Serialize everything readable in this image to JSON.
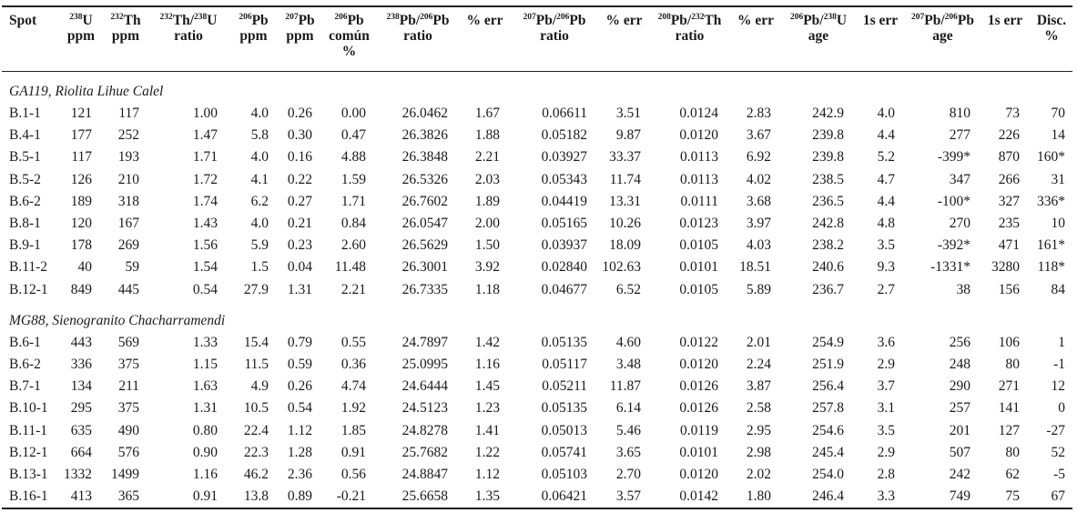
{
  "headers": [
    {
      "l1": "Spot",
      "l2": "",
      "l3": ""
    },
    {
      "iso": "238",
      "l1": "U",
      "l2": "ppm"
    },
    {
      "iso": "232",
      "l1": "Th",
      "l2": "ppm"
    },
    {
      "iso": "232",
      "l1": "Th/",
      "iso2": "238",
      "l1b": "U",
      "l2": "ratio"
    },
    {
      "iso": "206",
      "l1": "Pb",
      "l2": "ppm"
    },
    {
      "iso": "207",
      "l1": "Pb",
      "l2": "ppm"
    },
    {
      "iso": "206",
      "l1": "Pb",
      "l2": "común",
      "l3": "%"
    },
    {
      "iso": "238",
      "l1": "Pb/",
      "iso2": "206",
      "l1b": "Pb",
      "l2": "ratio"
    },
    {
      "l1": "% err"
    },
    {
      "iso": "207",
      "l1": "Pb/",
      "iso2": "206",
      "l1b": "Pb",
      "l2": "ratio"
    },
    {
      "l1": "% err"
    },
    {
      "iso": "208",
      "l1": "Pb/",
      "iso2": "232",
      "l1b": "Th",
      "l2": "ratio"
    },
    {
      "l1": "% err"
    },
    {
      "iso": "206",
      "l1": "Pb/",
      "iso2": "238",
      "l1b": "U",
      "l2": "age"
    },
    {
      "l1": "1s err"
    },
    {
      "iso": "207",
      "l1": "Pb/",
      "iso2": "206",
      "l1b": "Pb",
      "l2": "age"
    },
    {
      "l1": "1s err"
    },
    {
      "l1": "Disc.",
      "l2": "%"
    }
  ],
  "sections": [
    {
      "title": "GA119, Riolita Lihue Calel",
      "rows": [
        [
          "B.1-1",
          "121",
          "117",
          "1.00",
          "4.0",
          "0.26",
          "0.00",
          "26.0462",
          "1.67",
          "0.06611",
          "3.51",
          "0.0124",
          "2.83",
          "242.9",
          "4.0",
          "810",
          "73",
          "70"
        ],
        [
          "B.4-1",
          "177",
          "252",
          "1.47",
          "5.8",
          "0.30",
          "0.47",
          "26.3826",
          "1.88",
          "0.05182",
          "9.87",
          "0.0120",
          "3.67",
          "239.8",
          "4.4",
          "277",
          "226",
          "14"
        ],
        [
          "B.5-1",
          "117",
          "193",
          "1.71",
          "4.0",
          "0.16",
          "4.88",
          "26.3848",
          "2.21",
          "0.03927",
          "33.37",
          "0.0113",
          "6.92",
          "239.8",
          "5.2",
          "-399*",
          "870",
          "160*"
        ],
        [
          "B.5-2",
          "126",
          "210",
          "1.72",
          "4.1",
          "0.22",
          "1.59",
          "26.5326",
          "2.03",
          "0.05343",
          "11.74",
          "0.0113",
          "4.02",
          "238.5",
          "4.7",
          "347",
          "266",
          "31"
        ],
        [
          "B.6-2",
          "189",
          "318",
          "1.74",
          "6.2",
          "0.27",
          "1.71",
          "26.7602",
          "1.89",
          "0.04419",
          "13.31",
          "0.0111",
          "3.68",
          "236.5",
          "4.4",
          "-100*",
          "327",
          "336*"
        ],
        [
          "B.8-1",
          "120",
          "167",
          "1.43",
          "4.0",
          "0.21",
          "0.84",
          "26.0547",
          "2.00",
          "0.05165",
          "10.26",
          "0.0123",
          "3.97",
          "242.8",
          "4.8",
          "270",
          "235",
          "10"
        ],
        [
          "B.9-1",
          "178",
          "269",
          "1.56",
          "5.9",
          "0.23",
          "2.60",
          "26.5629",
          "1.50",
          "0.03937",
          "18.09",
          "0.0105",
          "4.03",
          "238.2",
          "3.5",
          "-392*",
          "471",
          "161*"
        ],
        [
          "B.11-2",
          "40",
          "59",
          "1.54",
          "1.5",
          "0.04",
          "11.48",
          "26.3001",
          "3.92",
          "0.02840",
          "102.63",
          "0.0101",
          "18.51",
          "240.6",
          "9.3",
          "-1331*",
          "3280",
          "118*"
        ],
        [
          "B.12-1",
          "849",
          "445",
          "0.54",
          "27.9",
          "1.31",
          "2.21",
          "26.7335",
          "1.18",
          "0.04677",
          "6.52",
          "0.0105",
          "5.89",
          "236.7",
          "2.7",
          "38",
          "156",
          "84"
        ]
      ]
    },
    {
      "title": "MG88, Sienogranito Chacharramendi",
      "rows": [
        [
          "B.6-1",
          "443",
          "569",
          "1.33",
          "15.4",
          "0.79",
          "0.55",
          "24.7897",
          "1.42",
          "0.05135",
          "4.60",
          "0.0122",
          "2.01",
          "254.9",
          "3.6",
          "256",
          "106",
          "1"
        ],
        [
          "B.6-2",
          "336",
          "375",
          "1.15",
          "11.5",
          "0.59",
          "0.36",
          "25.0995",
          "1.16",
          "0.05117",
          "3.48",
          "0.0120",
          "2.24",
          "251.9",
          "2.9",
          "248",
          "80",
          "-1"
        ],
        [
          "B.7-1",
          "134",
          "211",
          "1.63",
          "4.9",
          "0.26",
          "4.74",
          "24.6444",
          "1.45",
          "0.05211",
          "11.87",
          "0.0126",
          "3.87",
          "256.4",
          "3.7",
          "290",
          "271",
          "12"
        ],
        [
          "B.10-1",
          "295",
          "375",
          "1.31",
          "10.5",
          "0.54",
          "1.92",
          "24.5123",
          "1.23",
          "0.05135",
          "6.14",
          "0.0126",
          "2.58",
          "257.8",
          "3.1",
          "257",
          "141",
          "0"
        ],
        [
          "B.11-1",
          "635",
          "490",
          "0.80",
          "22.4",
          "1.12",
          "1.85",
          "24.8278",
          "1.41",
          "0.05013",
          "5.46",
          "0.0119",
          "2.95",
          "254.6",
          "3.5",
          "201",
          "127",
          "-27"
        ],
        [
          "B.12-1",
          "664",
          "576",
          "0.90",
          "22.3",
          "1.28",
          "0.91",
          "25.7682",
          "1.22",
          "0.05741",
          "3.65",
          "0.0101",
          "2.98",
          "245.4",
          "2.9",
          "507",
          "80",
          "52"
        ],
        [
          "B.13-1",
          "1332",
          "1499",
          "1.16",
          "46.2",
          "2.36",
          "0.56",
          "24.8847",
          "1.12",
          "0.05103",
          "2.70",
          "0.0120",
          "2.02",
          "254.0",
          "2.8",
          "242",
          "62",
          "-5"
        ],
        [
          "B.16-1",
          "413",
          "365",
          "0.91",
          "13.8",
          "0.89",
          "-0.21",
          "25.6658",
          "1.35",
          "0.06421",
          "3.57",
          "0.0142",
          "1.80",
          "246.4",
          "3.3",
          "749",
          "75",
          "67"
        ]
      ]
    }
  ]
}
